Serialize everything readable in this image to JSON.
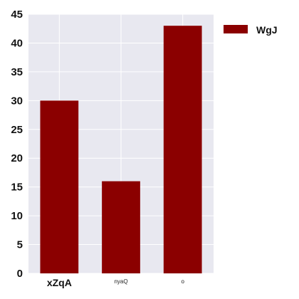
{
  "chart_data": {
    "type": "bar",
    "categories": [
      "xZqA",
      "nyaQ",
      "o"
    ],
    "series": [
      {
        "name": "WgJ",
        "values": [
          30,
          16,
          43
        ]
      }
    ],
    "ylim": [
      0,
      45
    ],
    "yticks": [
      0,
      5,
      10,
      15,
      20,
      25,
      30,
      35,
      40,
      45
    ],
    "grid": true,
    "legend_position": "top-right",
    "colors": {
      "bar": "#8b0000",
      "plot_background": "#e8e8f0",
      "grid": "#ffffff"
    }
  }
}
